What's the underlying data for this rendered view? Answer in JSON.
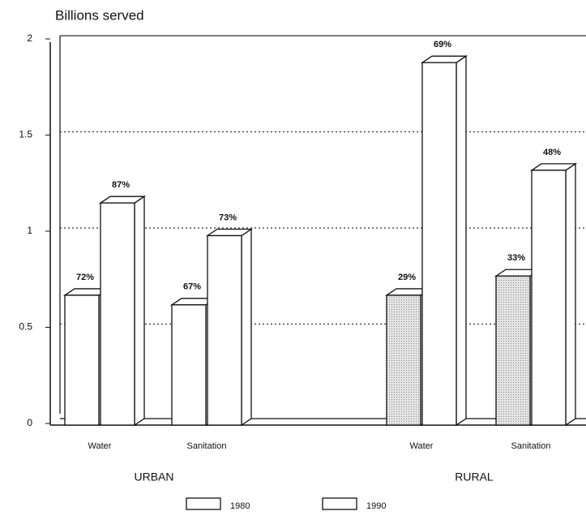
{
  "chart_data": {
    "type": "bar",
    "title": "Billions served",
    "categories": [
      "Water",
      "Sanitation",
      "Water",
      "Sanitation"
    ],
    "groups": [
      "URBAN",
      "RURAL"
    ],
    "ylim": [
      0,
      2
    ],
    "yticks": [
      0,
      0.5,
      1,
      1.5,
      2
    ],
    "grid": true,
    "series": [
      {
        "name": "1980",
        "colors": [
          "#ffffff",
          "#ffffff",
          "#cfcfcf",
          "#cfcfcf"
        ],
        "values": [
          0.65,
          0.6,
          0.65,
          0.75
        ],
        "point_labels": [
          "72%",
          "67%",
          "29%",
          "33%"
        ]
      },
      {
        "name": "1990",
        "colors": [
          "#ffffff",
          "#ffffff",
          "#ffffff",
          "#ffffff"
        ],
        "values": [
          1.13,
          0.96,
          1.86,
          1.3
        ],
        "point_labels": [
          "87%",
          "73%",
          "69%",
          "48%"
        ]
      }
    ]
  }
}
